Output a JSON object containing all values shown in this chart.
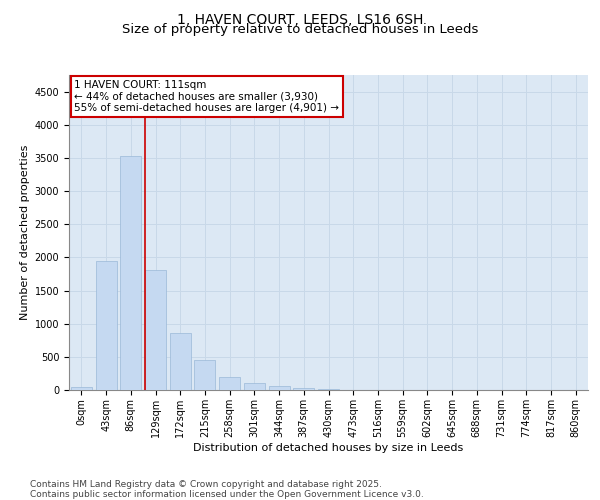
{
  "title_line1": "1, HAVEN COURT, LEEDS, LS16 6SH",
  "title_line2": "Size of property relative to detached houses in Leeds",
  "xlabel": "Distribution of detached houses by size in Leeds",
  "ylabel": "Number of detached properties",
  "bar_labels": [
    "0sqm",
    "43sqm",
    "86sqm",
    "129sqm",
    "172sqm",
    "215sqm",
    "258sqm",
    "301sqm",
    "344sqm",
    "387sqm",
    "430sqm",
    "473sqm",
    "516sqm",
    "559sqm",
    "602sqm",
    "645sqm",
    "688sqm",
    "731sqm",
    "774sqm",
    "817sqm",
    "860sqm"
  ],
  "bar_values": [
    50,
    1940,
    3530,
    1810,
    860,
    450,
    195,
    110,
    60,
    30,
    10,
    5,
    0,
    0,
    0,
    0,
    0,
    0,
    0,
    0,
    0
  ],
  "bar_color": "#c5d9f1",
  "bar_edge_color": "#9ab8d8",
  "bar_width": 0.85,
  "ylim": [
    0,
    4750
  ],
  "yticks": [
    0,
    500,
    1000,
    1500,
    2000,
    2500,
    3000,
    3500,
    4000,
    4500
  ],
  "grid_color": "#c8d8e8",
  "bg_color": "#dce8f4",
  "property_line_x": 2.58,
  "annotation_title": "1 HAVEN COURT: 111sqm",
  "annotation_line1": "← 44% of detached houses are smaller (3,930)",
  "annotation_line2": "55% of semi-detached houses are larger (4,901) →",
  "annotation_box_color": "#ffffff",
  "annotation_border_color": "#cc0000",
  "footer_line1": "Contains HM Land Registry data © Crown copyright and database right 2025.",
  "footer_line2": "Contains public sector information licensed under the Open Government Licence v3.0.",
  "title_fontsize": 10,
  "axis_label_fontsize": 8,
  "tick_fontsize": 7,
  "annotation_fontsize": 7.5,
  "footer_fontsize": 6.5,
  "ylabel_fontsize": 8
}
